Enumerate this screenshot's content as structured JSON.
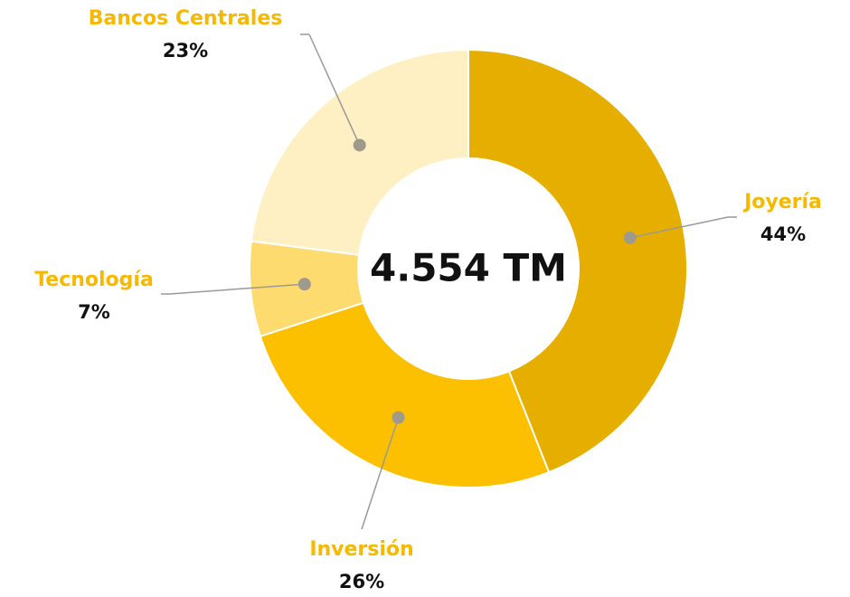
{
  "chart_data": {
    "type": "donut",
    "center_label": "4.554 TM",
    "categories": [
      "Joyería",
      "Inversión",
      "Tecnología",
      "Bancos Centrales"
    ],
    "values": [
      44,
      26,
      7,
      23
    ],
    "value_labels": [
      "44%",
      "26%",
      "7%",
      "23%"
    ],
    "colors": [
      "#e6af00",
      "#fcc000",
      "#fedb6e",
      "#fff0c4"
    ],
    "label_color": "#f7b900"
  }
}
